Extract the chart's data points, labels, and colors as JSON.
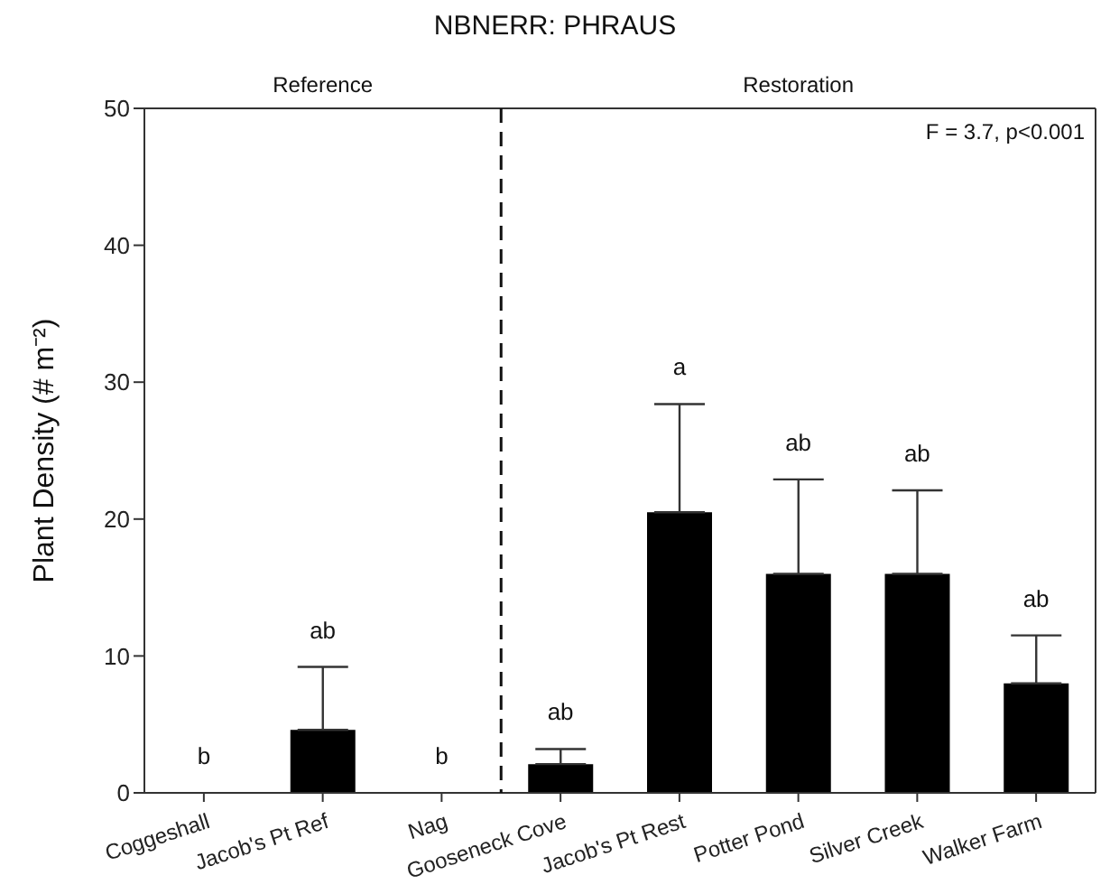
{
  "chart_data": {
    "type": "bar",
    "title": "NBNERR: PHRAUS",
    "ylabel": "Plant Density (# m⁻²)",
    "categories": [
      "Coggeshall",
      "Jacob's Pt Ref",
      "Nag",
      "Gooseneck Cove",
      "Jacob's Pt Rest",
      "Potter Pond",
      "Silver Creek",
      "Walker Farm"
    ],
    "values": [
      0,
      4.6,
      0,
      2.1,
      20.5,
      16,
      16,
      8
    ],
    "errors": [
      null,
      [
        4.6,
        9.2
      ],
      null,
      [
        2.1,
        3.2
      ],
      [
        20.5,
        28.4
      ],
      [
        16,
        22.9
      ],
      [
        16,
        22.1
      ],
      [
        8,
        11.5
      ]
    ],
    "color": "#000000",
    "ylim": [
      0,
      50
    ],
    "yticks": [
      0,
      10,
      20,
      30,
      40,
      50
    ],
    "grid": false,
    "legend": false,
    "annotations": [
      "F = 3.7, p<0.001",
      "Reference",
      "Restoration",
      {
        "text": "b",
        "x": "Coggeshall",
        "y": 0
      },
      {
        "text": "ab",
        "x": "Jacob's Pt Ref",
        "y": 9.2
      },
      {
        "text": "b",
        "x": "Nag",
        "y": 0
      },
      {
        "text": "ab",
        "x": "Gooseneck Cove",
        "y": 3.2
      },
      {
        "text": "a",
        "x": "Jacob's Pt Rest",
        "y": 28.4
      },
      {
        "text": "ab",
        "x": "Potter Pond",
        "y": 22.9
      },
      {
        "text": "ab",
        "x": "Silver Creek",
        "y": 22.1
      },
      {
        "text": "ab",
        "x": "Walker Farm",
        "y": 11.5
      }
    ]
  }
}
